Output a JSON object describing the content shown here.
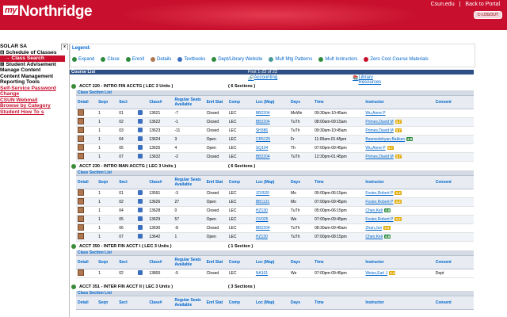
{
  "header": {
    "logo_my": "my",
    "logo_text": "Northridge",
    "link1": "Csun.edu",
    "sep": "|",
    "link2": "Back to Portal",
    "logout": "LOGOUT"
  },
  "sidebar": {
    "title": "SOLAR SA",
    "close": "x",
    "items": [
      {
        "label": "⊟ Schedule of Classes",
        "style": "normal"
      },
      {
        "label": "→ Class Search",
        "style": "selected"
      },
      {
        "label": "⊞ Student Advisement",
        "style": "normal"
      },
      {
        "label": "Manage Content",
        "style": "normal"
      },
      {
        "label": "Content Management",
        "style": "normal"
      },
      {
        "label": "Reporting Tools",
        "style": "normal"
      },
      {
        "label": "Self-Service Password",
        "style": "red"
      },
      {
        "label": "Change",
        "style": "red"
      },
      {
        "label": "CSUN Webmail",
        "style": "red"
      },
      {
        "label": "Browse by Category",
        "style": "red"
      },
      {
        "label": "Student How To`s",
        "style": "red"
      }
    ]
  },
  "legend": {
    "title": "Legend:",
    "items": [
      {
        "label": "Expand",
        "color": "#2e8b3e"
      },
      {
        "label": "Close",
        "color": "#2e8b3e"
      },
      {
        "label": "Enroll",
        "color": "#2e8b3e"
      },
      {
        "label": "Details",
        "color": "#b07850"
      },
      {
        "label": "Textbooks",
        "color": "#3b6fbf"
      },
      {
        "label": "Dept/Library Website",
        "color": "#2e8b3e"
      },
      {
        "label": "Mult Mtg Patterns",
        "color": "#4a9a9a"
      },
      {
        "label": "Mult Instructors",
        "color": "#2e8b3e"
      },
      {
        "label": "Zero Cost Course Materials",
        "color": "#c8102e"
      }
    ]
  },
  "bar": {
    "left": "Course List",
    "center": "First 1-23 of 23"
  },
  "sublinks": {
    "accounting": "Accounting",
    "library": "Library Resources"
  },
  "section_list_label": "Class Section List",
  "columns": [
    "Detail",
    "Seqn",
    "Sect",
    "",
    "Class#",
    "Regular Seats Available",
    "Enrl Stat",
    "Comp",
    "Loc (Map)",
    "Days",
    "Time",
    "Instructor",
    "Consent"
  ],
  "courses": [
    {
      "title": "ACCT 220 - INTRO FIN ACCTG ( LEC 3 Units )",
      "sections": "( 6 Sections )",
      "rows": [
        {
          "seqn": "1",
          "sect": "01",
          "cls": "13621",
          "seats": "-7",
          "stat": "Closed",
          "comp": "LEC",
          "loc": "BB2204",
          "days": "MoWe",
          "time": "09:30am-10:45am",
          "instr": "Wu,Anne P",
          "rate": "",
          "rc": "",
          "consent": ""
        },
        {
          "seqn": "1",
          "sect": "02",
          "cls": "13622",
          "seats": "-1",
          "stat": "Closed",
          "comp": "LEC",
          "loc": "BB2204",
          "days": "TuTh",
          "time": "08:00am-09:15am",
          "instr": "Primes,David M",
          "rate": "3.7",
          "rc": "#e0a800",
          "consent": ""
        },
        {
          "seqn": "1",
          "sect": "03",
          "cls": "13623",
          "seats": "-11",
          "stat": "Closed",
          "comp": "LEC",
          "loc": "SH386",
          "days": "TuTh",
          "time": "09:30am-10:45am",
          "instr": "Primes,David M",
          "rate": "3.7",
          "rc": "#e0a800",
          "consent": ""
        },
        {
          "seqn": "1",
          "sect": "04",
          "cls": "13624",
          "seats": "3",
          "stat": "Open",
          "comp": "LEC",
          "loc": "CR5125",
          "days": "Fr",
          "time": "11:00am-01:45pm",
          "instr": "Basmedzhyan,Bakken",
          "rate": "4.6",
          "rc": "#2e8b3e",
          "consent": ""
        },
        {
          "seqn": "1",
          "sect": "05",
          "cls": "13625",
          "seats": "4",
          "stat": "Open",
          "comp": "LEC",
          "loc": "SQ104",
          "days": "Th",
          "time": "07:00pm-09:45pm",
          "instr": "Wu,Anne P",
          "rate": "3.7",
          "rc": "#e0a800",
          "consent": ""
        },
        {
          "seqn": "1",
          "sect": "07",
          "cls": "13632",
          "seats": "-2",
          "stat": "Closed",
          "comp": "LEC",
          "loc": "BB2204",
          "days": "TuTh",
          "time": "12:30pm-01:45pm",
          "instr": "Primes,David M",
          "rate": "3.7",
          "rc": "#e0a800",
          "consent": ""
        }
      ]
    },
    {
      "title": "ACCT 230 - INTRO MAN ACCTG ( LEC 3 Units )",
      "sections": "( 6 Sections )",
      "rows": [
        {
          "seqn": "1",
          "sect": "01",
          "cls": "13591",
          "seats": "-3",
          "stat": "Closed",
          "comp": "LEC",
          "loc": "JD3520",
          "days": "Mo",
          "time": "05:00pm-06:15pm",
          "instr": "Foster,Robert P",
          "rate": "3.3",
          "rc": "#e0a800",
          "consent": ""
        },
        {
          "seqn": "1",
          "sect": "02",
          "cls": "13626",
          "seats": "27",
          "stat": "Open",
          "comp": "LEC",
          "loc": "BB1131",
          "days": "Mo",
          "time": "07:00pm-09:45pm",
          "instr": "Foster,Robert P",
          "rate": "3.3",
          "rc": "#e0a800",
          "consent": ""
        },
        {
          "seqn": "1",
          "sect": "04",
          "cls": "13628",
          "seats": "0",
          "stat": "Closed",
          "comp": "LEC",
          "loc": "HZ130",
          "days": "TuTh",
          "time": "05:00pm-06:15pm",
          "instr": "Chen,Keli",
          "rate": "4.6",
          "rc": "#2e8b3e",
          "consent": ""
        },
        {
          "seqn": "1",
          "sect": "05",
          "cls": "13629",
          "seats": "57",
          "stat": "Open",
          "comp": "LEC",
          "loc": "OV025",
          "days": "We",
          "time": "07:00pm-09:45pm",
          "instr": "Foster,Robert P",
          "rate": "3.3",
          "rc": "#e0a800",
          "consent": ""
        },
        {
          "seqn": "1",
          "sect": "06",
          "cls": "13630",
          "seats": "-8",
          "stat": "Closed",
          "comp": "LEC",
          "loc": "BB2204",
          "days": "TuTh",
          "time": "08:30am-09:45am",
          "instr": "Zhan,Jun",
          "rate": "3.3",
          "rc": "#e0a800",
          "consent": ""
        },
        {
          "seqn": "1",
          "sect": "07",
          "cls": "13642",
          "seats": "1",
          "stat": "Open",
          "comp": "LEC",
          "loc": "HZ130",
          "days": "TuTh",
          "time": "07:00pm-08:15pm",
          "instr": "Chen,Keli",
          "rate": "4.6",
          "rc": "#2e8b3e",
          "consent": ""
        }
      ]
    },
    {
      "title": "ACCT 350 - INTER FIN ACCT I ( LEC 3 Units )",
      "sections": "( 1 Section )",
      "rows": [
        {
          "seqn": "1",
          "sect": "02",
          "cls": "13800",
          "seats": "-5",
          "stat": "Closed",
          "comp": "LEC",
          "loc": "NA101",
          "days": "We",
          "time": "07:00pm-09:45pm",
          "instr": "Weiss,Earl J",
          "rate": "3.3",
          "rc": "#e0a800",
          "consent": "Dept"
        }
      ]
    },
    {
      "title": "ACCT 351 - INTER FIN ACCT II ( LEC 3 Units )",
      "sections": "( 3 Sections )",
      "rows": []
    }
  ]
}
